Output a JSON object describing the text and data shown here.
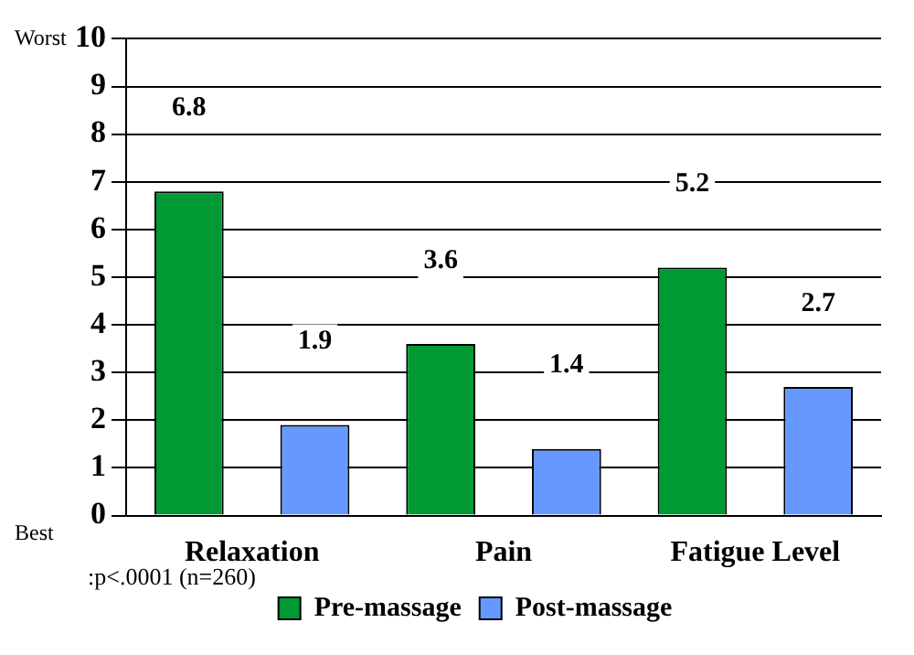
{
  "chart_data": {
    "type": "bar",
    "categories": [
      "Relaxation",
      "Pain",
      "Fatigue Level"
    ],
    "series": [
      {
        "name": "Pre-massage",
        "color": "#009933",
        "values": [
          6.8,
          3.6,
          5.2
        ]
      },
      {
        "name": "Post-massage",
        "color": "#6699ff",
        "values": [
          1.9,
          1.4,
          2.7
        ]
      }
    ],
    "ylim": [
      0,
      10
    ],
    "yticks": [
      0,
      1,
      2,
      3,
      4,
      5,
      6,
      7,
      8,
      9,
      10
    ],
    "grid": "y",
    "legend": "bottom",
    "data_labels": true,
    "annotations": [
      "Worst",
      "Best",
      ":p<.0001 (n=260)"
    ]
  }
}
